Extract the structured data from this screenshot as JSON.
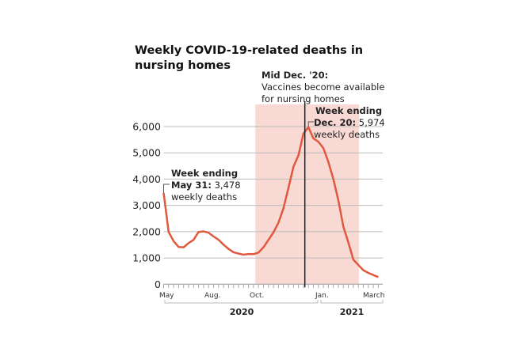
{
  "chart_data": {
    "type": "line",
    "title": "Weekly COVID-19-related deaths in nursing homes",
    "xlabel": "",
    "ylabel": "",
    "ylim": [
      0,
      6000
    ],
    "yticks": [
      0,
      1000,
      2000,
      3000,
      4000,
      5000,
      6000
    ],
    "ytick_labels": [
      "0",
      "1,000",
      "2,000",
      "3,000",
      "4,000",
      "5,000",
      "6,000"
    ],
    "xtick_labels": [
      "May",
      "Aug.",
      "Oct.",
      "Jan.",
      "March"
    ],
    "year_labels": [
      "2020",
      "2021"
    ],
    "grid": true,
    "line_color": "#e0583e",
    "shade_color": "#f9d9d3",
    "shaded_period": [
      "2020-10-01",
      "2021-03-01"
    ],
    "start_date": "2020-05-31",
    "series": [
      {
        "values": [
          3478,
          1990,
          1640,
          1415,
          1405,
          1565,
          1690,
          1990,
          2010,
          1960,
          1820,
          1690,
          1505,
          1345,
          1215,
          1165,
          1125,
          1150,
          1145,
          1205,
          1405,
          1690,
          1970,
          2340,
          2890,
          3665,
          4470,
          4900,
          5733,
          5974,
          5550,
          5420,
          5180,
          4650,
          4000,
          3190,
          2190,
          1590,
          935,
          733,
          532,
          430,
          350,
          270
        ]
      }
    ],
    "annotations": {
      "vaccine": {
        "bold": "Mid Dec. '20:",
        "text": "Vaccines become available for nursing homes",
        "date": "2020-12-15"
      },
      "first": {
        "bold1": "Week ending",
        "bold2": "May 31:",
        "value": "3,478",
        "text": "weekly deaths"
      },
      "peak": {
        "bold1": "Week ending",
        "bold2": "Dec. 20:",
        "value": "5,974",
        "text": "weekly deaths"
      }
    }
  }
}
